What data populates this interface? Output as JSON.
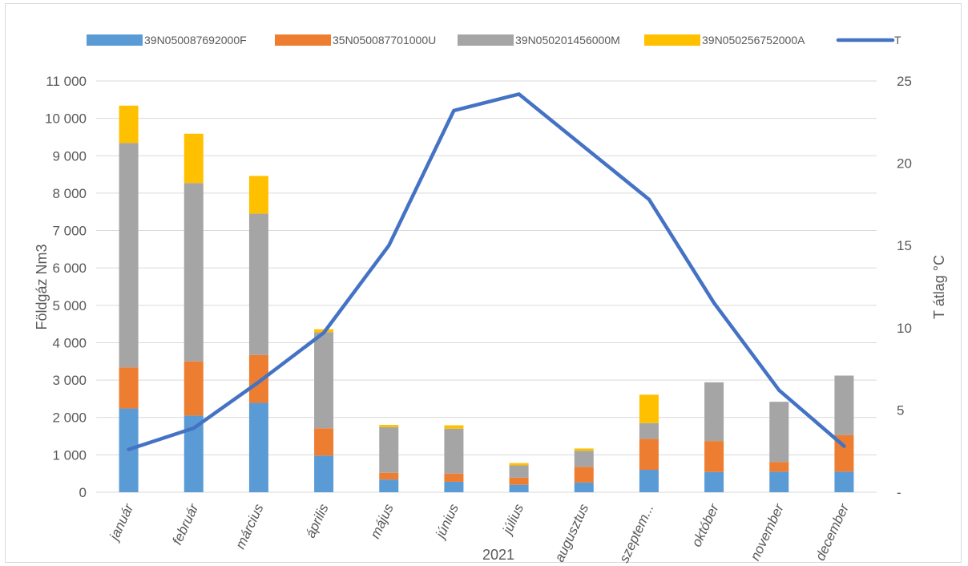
{
  "chart_data": {
    "type": "bar",
    "stacked": true,
    "xlabel": "2021",
    "ylabel": "Földgáz Nm3",
    "y2label": "T átlag °C",
    "ylim": [
      0,
      11000
    ],
    "y2lim": [
      0,
      25
    ],
    "y_ticks": [
      "0",
      "1 000",
      "2 000",
      "3 000",
      "4 000",
      "5 000",
      "6 000",
      "7 000",
      "8 000",
      "9 000",
      "10 000",
      "11 000"
    ],
    "y2_ticks": [
      "-",
      "5",
      "10",
      "15",
      "20",
      "25"
    ],
    "grid": true,
    "legend_position": "top",
    "categories": [
      "január",
      "február",
      "március",
      "április",
      "május",
      "június",
      "július",
      "augusztus",
      "szeptem...",
      "október",
      "november",
      "december"
    ],
    "series": [
      {
        "name": "39N050087692000F",
        "color": "#5b9bd5",
        "values": [
          2240,
          2050,
          2390,
          980,
          340,
          280,
          200,
          260,
          600,
          540,
          550,
          550
        ]
      },
      {
        "name": "35N050087701000U",
        "color": "#ed7d31",
        "values": [
          1100,
          1450,
          1280,
          730,
          180,
          220,
          190,
          420,
          830,
          830,
          260,
          980
        ]
      },
      {
        "name": "39N050201456000M",
        "color": "#a5a5a5",
        "values": [
          6000,
          4770,
          3780,
          2570,
          1220,
          1200,
          330,
          430,
          420,
          1570,
          1610,
          1590
        ]
      },
      {
        "name": "39N050256752000A",
        "color": "#ffc000",
        "values": [
          1000,
          1320,
          1010,
          80,
          60,
          90,
          60,
          60,
          760,
          0,
          0,
          0
        ]
      }
    ],
    "line_series": {
      "name": "T",
      "color": "#4472c4",
      "axis": "right",
      "values": [
        2.6,
        3.9,
        6.7,
        9.7,
        15.0,
        23.2,
        24.2,
        21.0,
        17.8,
        11.5,
        6.2,
        2.8
      ]
    }
  }
}
